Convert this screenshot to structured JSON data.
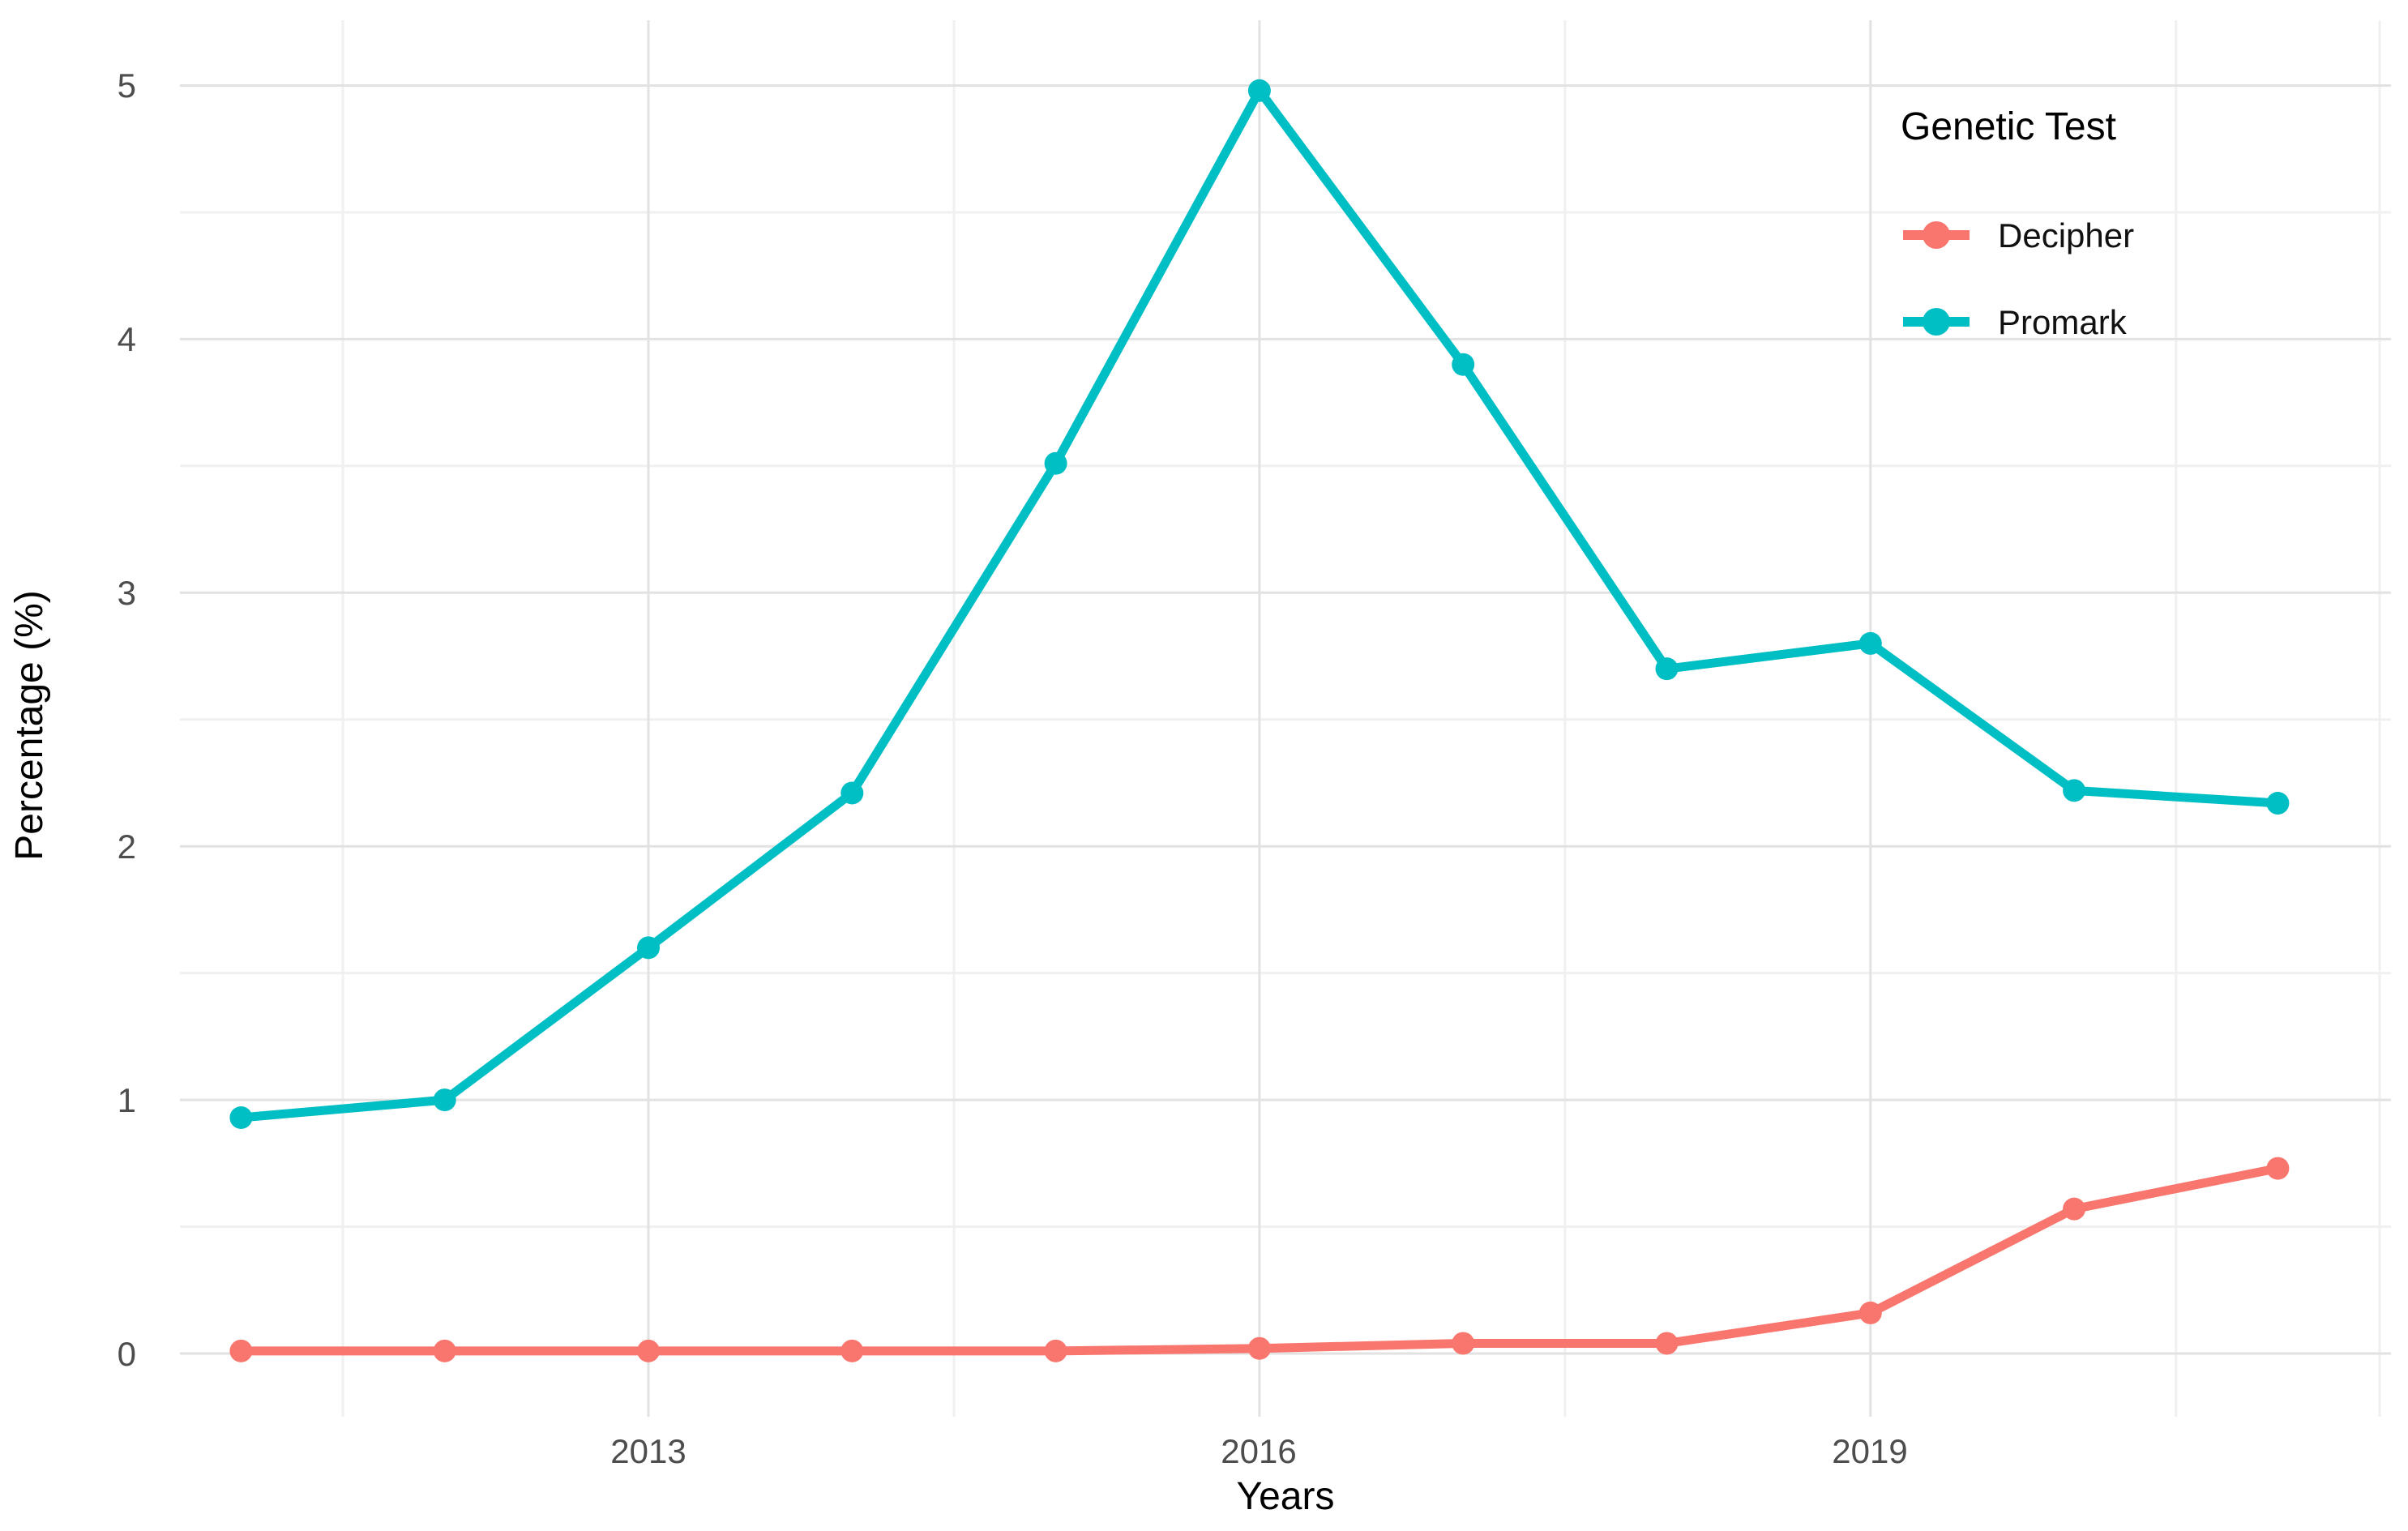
{
  "chart_data": {
    "type": "line",
    "title": "",
    "xlabel": "Years",
    "ylabel": "Percentage (%)",
    "x": [
      2011,
      2012,
      2013,
      2014,
      2015,
      2016,
      2017,
      2018,
      2019,
      2020,
      2021
    ],
    "series": [
      {
        "name": "Decipher",
        "color": "#F8766D",
        "values": [
          0.01,
          0.01,
          0.01,
          0.01,
          0.01,
          0.02,
          0.04,
          0.04,
          0.16,
          0.57,
          0.73
        ]
      },
      {
        "name": "Promark",
        "color": "#00BFC4",
        "values": [
          0.93,
          1.0,
          1.6,
          2.21,
          3.51,
          4.98,
          3.9,
          2.7,
          2.8,
          2.22,
          2.17
        ]
      }
    ],
    "x_tick_labels": [
      "2013",
      "2016",
      "2019"
    ],
    "x_major_ticks": [
      2013,
      2016,
      2019
    ],
    "x_minor_ticks": [
      2011.5,
      2014.5,
      2017.5,
      2020.5,
      2021.5
    ],
    "y_tick_labels": [
      "0",
      "1",
      "2",
      "3",
      "4",
      "5"
    ],
    "y_major_ticks": [
      0,
      1,
      2,
      3,
      4,
      5
    ],
    "y_minor_ticks": [
      0.5,
      1.5,
      2.5,
      3.5,
      4.5
    ],
    "ylim": [
      0,
      5
    ],
    "xlim": [
      2011,
      2021
    ],
    "grid": true,
    "legend_position": "top-right-inside",
    "legend": {
      "title": "Genetic Test",
      "items": [
        {
          "label": "Decipher",
          "color": "#F8766D"
        },
        {
          "label": "Promark",
          "color": "#00BFC4"
        }
      ]
    },
    "colors": {
      "grid_major": "#e2e2e2",
      "grid_minor": "#f0f0f0",
      "tick_text": "#4d4d4d",
      "background": "#ffffff"
    }
  }
}
